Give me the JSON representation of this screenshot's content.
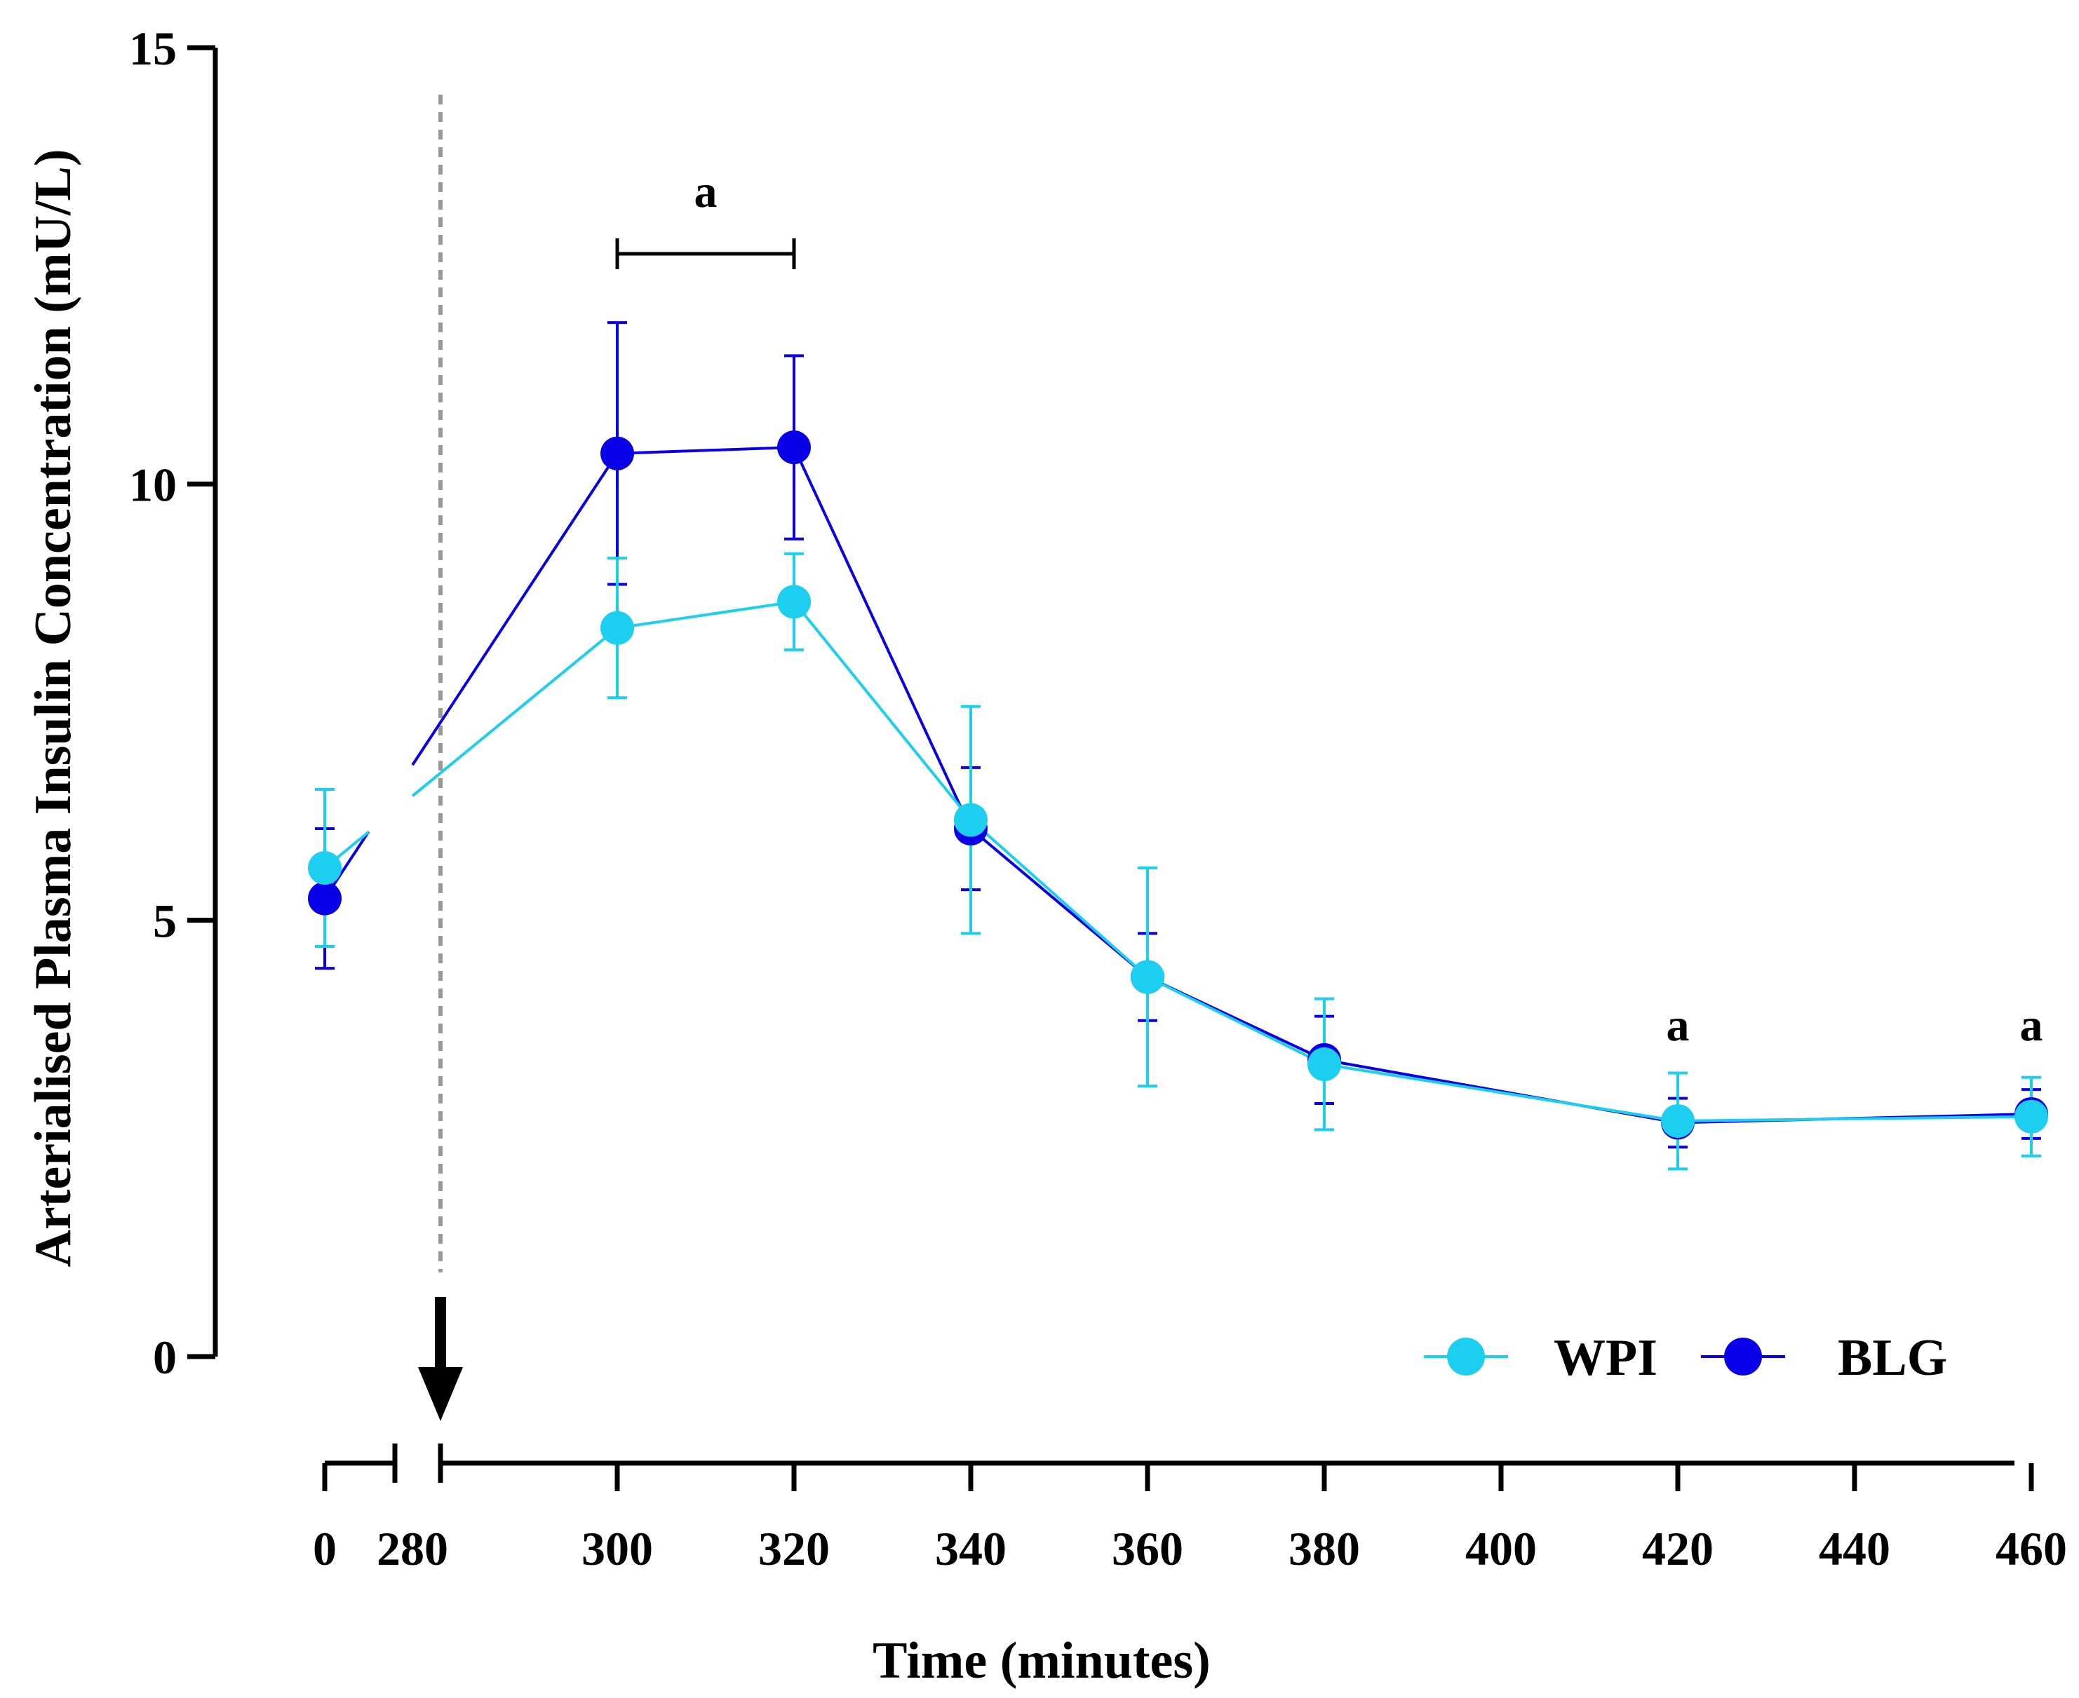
{
  "chart_data": {
    "type": "line",
    "title": "",
    "xlabel": "Time (minutes)",
    "ylabel": "Arterialised Plasma Insulin Concentration (mU/L)",
    "ylim": [
      0,
      15
    ],
    "yticks": [
      "0",
      "5",
      "10",
      "15"
    ],
    "xticks": [
      "0",
      "280",
      "300",
      "320",
      "340",
      "360",
      "380",
      "400",
      "420",
      "440",
      "460"
    ],
    "x_axis_break": "between 0 and 280",
    "x": [
      0,
      300,
      320,
      340,
      360,
      380,
      420,
      460
    ],
    "series": [
      {
        "name": "WPI",
        "color": "#1ccff0",
        "values": [
          5.6,
          8.35,
          8.65,
          6.15,
          4.35,
          3.35,
          2.7,
          2.75
        ],
        "errors": [
          0.9,
          0.8,
          0.55,
          1.3,
          1.25,
          0.75,
          0.55,
          0.45
        ]
      },
      {
        "name": "BLG",
        "color": "#0a00e8",
        "values": [
          5.25,
          10.35,
          10.42,
          6.05,
          4.35,
          3.4,
          2.68,
          2.78
        ],
        "errors": [
          0.8,
          1.5,
          1.05,
          0.7,
          0.5,
          0.5,
          0.28,
          0.28
        ]
      }
    ],
    "annotations": [
      {
        "text": "a",
        "x_from": 300,
        "x_to": 320
      },
      {
        "text": "a",
        "x": 420
      },
      {
        "text": "a",
        "x": 460
      }
    ],
    "marker": {
      "type": "vertical dashed line with downward arrow",
      "x": 280
    },
    "legend": {
      "position": "bottom-right",
      "entries": [
        "WPI",
        "BLG"
      ]
    }
  }
}
